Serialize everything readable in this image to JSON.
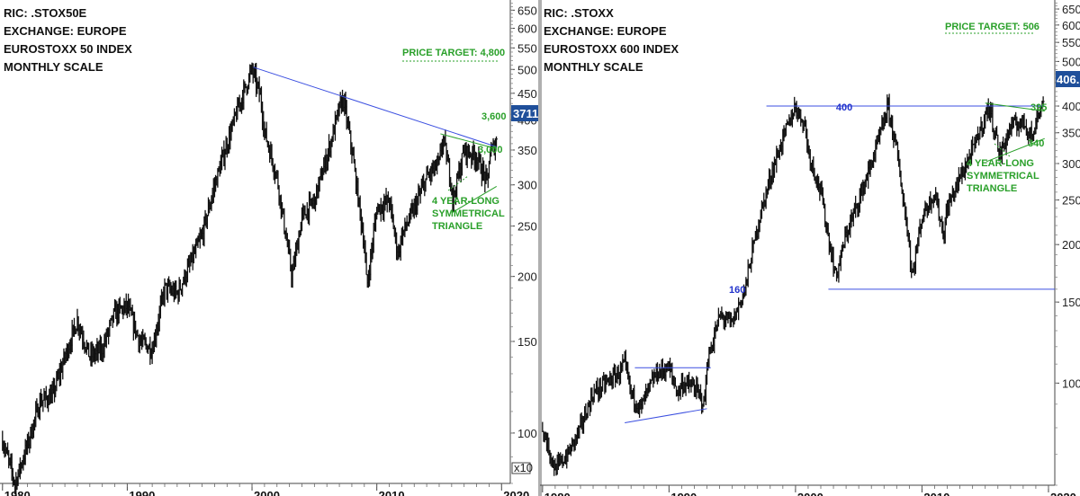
{
  "colors": {
    "price": "#111111",
    "trend_blue": "#3b4fe0",
    "green": "#2aa02a",
    "axis_badge": "#1f4f9a"
  },
  "chart_data": [
    {
      "type": "line",
      "ric": "RIC: .STOX50E",
      "exchange": "EXCHANGE: EUROPE",
      "name": "EUROSTOXX 50 INDEX",
      "scale": "MONTHLY SCALE",
      "y_scale": "log",
      "ylim": [
        80,
        680
      ],
      "xlim": [
        1979.8,
        2020.7
      ],
      "x_ticks": [
        "1980",
        "1990",
        "2000",
        "2010",
        "2020"
      ],
      "y_ticks": [
        "650",
        "600",
        "550",
        "500",
        "450",
        "400",
        "350",
        "300",
        "250",
        "200",
        "150",
        "100"
      ],
      "y_multiplier": "x10",
      "last_value": "3711",
      "series": [
        {
          "x": [
            1980,
            1981,
            1982,
            1983,
            1984,
            1985,
            1986,
            1987,
            1988,
            1989,
            1990,
            1991,
            1992,
            1993,
            1994,
            1995,
            1996,
            1997,
            1998,
            1999,
            2000,
            2000.7,
            2001,
            2002,
            2002.7,
            2003.2,
            2004,
            2005,
            2006,
            2007,
            2007.3,
            2008,
            2009,
            2009.2,
            2010,
            2011,
            2011.7,
            2012,
            2013,
            2014,
            2015,
            2015.3,
            2016,
            2016.1,
            2017,
            2018,
            2018.9,
            2019,
            2019.6
          ],
          "y": [
            97,
            80,
            95,
            115,
            118,
            140,
            165,
            140,
            145,
            170,
            175,
            150,
            145,
            190,
            185,
            210,
            240,
            300,
            360,
            430,
            500,
            440,
            380,
            310,
            240,
            200,
            260,
            280,
            340,
            420,
            440,
            350,
            230,
            190,
            270,
            280,
            220,
            240,
            270,
            310,
            330,
            370,
            300,
            280,
            350,
            340,
            300,
            340,
            365
          ]
        }
      ],
      "annotations": [
        {
          "text": "PRICE TARGET: 4,800"
        },
        {
          "text": "3,600"
        },
        {
          "text": "3,000"
        },
        {
          "lines": [
            "4 YEAR-LONG",
            "SYMMETRICAL",
            "TRIANGLE"
          ]
        }
      ]
    },
    {
      "type": "line",
      "ric": "RIC: .STOXX",
      "exchange": "EXCHANGE: EUROPE",
      "name": "EUROSTOXX 600 INDEX",
      "scale": "MONTHLY SCALE",
      "y_scale": "log",
      "ylim": [
        60,
        680
      ],
      "xlim": [
        1979.8,
        2020.5
      ],
      "x_ticks": [
        "1980",
        "1990",
        "2000",
        "2010",
        "2020"
      ],
      "y_ticks": [
        "650",
        "600",
        "550",
        "500",
        "450",
        "400",
        "350",
        "300",
        "250",
        "200",
        "150",
        "100"
      ],
      "last_value": "406.",
      "series": [
        {
          "x": [
            1980,
            1980.5,
            1981,
            1982,
            1983,
            1984,
            1985,
            1986,
            1986.5,
            1987,
            1987.8,
            1988,
            1989,
            1990,
            1990.7,
            1991,
            1992,
            1992.8,
            1993,
            1994,
            1995,
            1996,
            1997,
            1998,
            1999,
            2000,
            2000.8,
            2001,
            2002,
            2002.7,
            2003.2,
            2004,
            2005,
            2006,
            2007,
            2007.3,
            2008,
            2009,
            2009.2,
            2010,
            2011,
            2011.7,
            2012,
            2013,
            2014,
            2015,
            2015.3,
            2016,
            2016.1,
            2017,
            2018,
            2018.9,
            2019,
            2019.6
          ],
          "y": [
            80,
            72,
            65,
            70,
            80,
            95,
            100,
            105,
            110,
            95,
            88,
            92,
            105,
            108,
            95,
            100,
            98,
            90,
            110,
            140,
            135,
            160,
            220,
            280,
            340,
            400,
            360,
            320,
            260,
            200,
            170,
            210,
            250,
            300,
            370,
            400,
            320,
            200,
            170,
            230,
            260,
            210,
            240,
            280,
            320,
            380,
            400,
            330,
            310,
            360,
            370,
            340,
            380,
            406
          ]
        }
      ],
      "annotations": [
        {
          "text": "PRICE TARGET: 506"
        },
        {
          "text": "400"
        },
        {
          "text": "395"
        },
        {
          "text": "340"
        },
        {
          "text": "160"
        },
        {
          "lines": [
            "4 YEAR-LONG",
            "SYMMETRICAL",
            "TRIANGLE"
          ]
        }
      ]
    }
  ]
}
